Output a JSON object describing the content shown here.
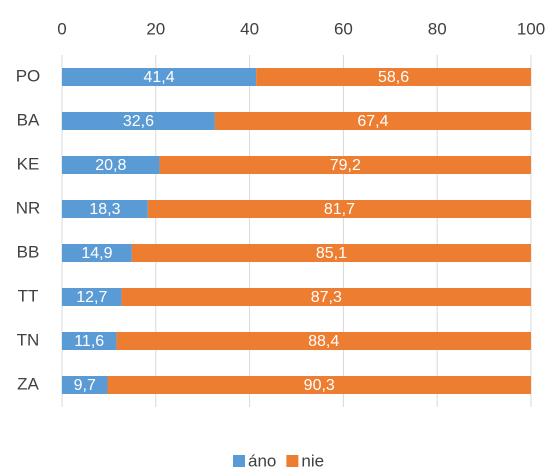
{
  "chart_data": {
    "type": "stacked_bar_horizontal",
    "categories": [
      "PO",
      "BA",
      "KE",
      "NR",
      "BB",
      "TT",
      "TN",
      "ZA"
    ],
    "series": [
      {
        "name": "áno",
        "color": "#5b9bd5",
        "values": [
          41.4,
          32.6,
          20.8,
          18.3,
          14.9,
          12.7,
          11.6,
          9.7
        ],
        "value_labels": [
          "41,4",
          "32,6",
          "20,8",
          "18,3",
          "14,9",
          "12,7",
          "11,6",
          "9,7"
        ]
      },
      {
        "name": "nie",
        "color": "#ed7d31",
        "values": [
          58.6,
          67.4,
          79.2,
          81.7,
          85.1,
          87.3,
          88.4,
          90.3
        ],
        "value_labels": [
          "58,6",
          "67,4",
          "79,2",
          "81,7",
          "85,1",
          "87,3",
          "88,4",
          "90,3"
        ]
      }
    ],
    "xlim": [
      0,
      100
    ],
    "xticks": [
      0,
      20,
      40,
      60,
      80,
      100
    ],
    "grid": true,
    "legend": "bottom"
  }
}
